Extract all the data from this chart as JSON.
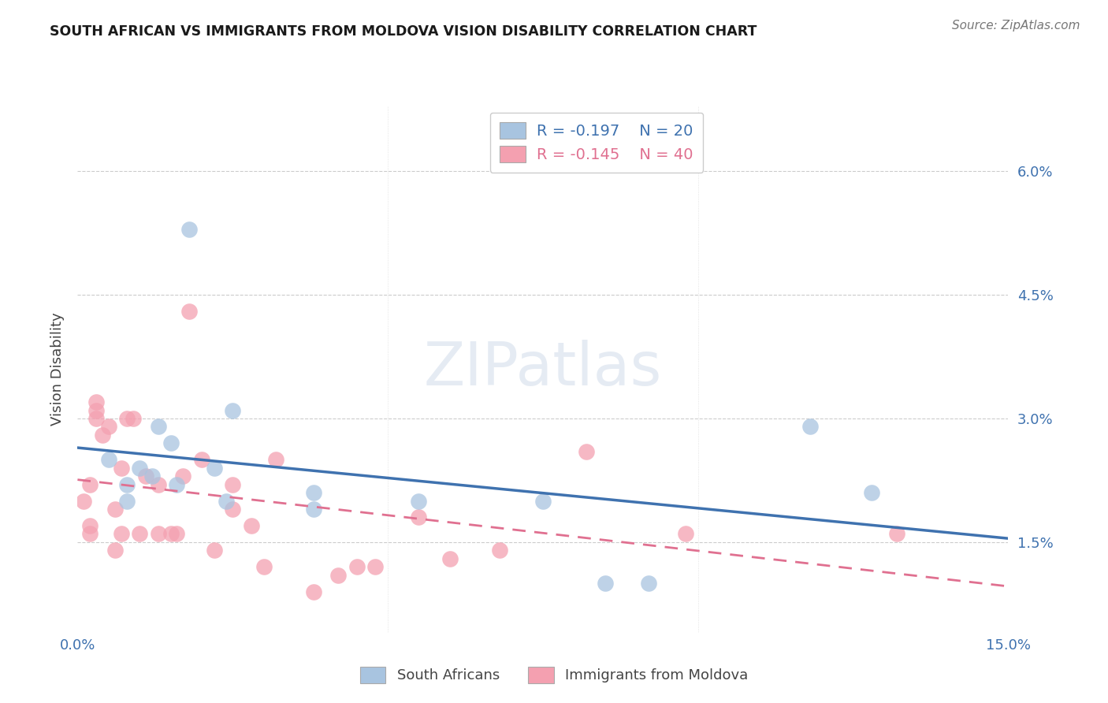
{
  "title": "SOUTH AFRICAN VS IMMIGRANTS FROM MOLDOVA VISION DISABILITY CORRELATION CHART",
  "source": "Source: ZipAtlas.com",
  "ylabel": "Vision Disability",
  "xlim": [
    0.0,
    0.15
  ],
  "ylim": [
    0.004,
    0.068
  ],
  "x_ticks": [
    0.0,
    0.05,
    0.1,
    0.15
  ],
  "x_tick_labels": [
    "0.0%",
    "",
    "",
    "15.0%"
  ],
  "y_ticks": [
    0.015,
    0.03,
    0.045,
    0.06
  ],
  "y_tick_labels": [
    "1.5%",
    "3.0%",
    "4.5%",
    "6.0%"
  ],
  "blue_R": -0.197,
  "blue_N": 20,
  "pink_R": -0.145,
  "pink_N": 40,
  "blue_color": "#a8c4e0",
  "pink_color": "#f4a0b0",
  "blue_line_color": "#3f72af",
  "pink_line_color": "#e07090",
  "blue_points_x": [
    0.018,
    0.005,
    0.008,
    0.008,
    0.01,
    0.012,
    0.013,
    0.015,
    0.016,
    0.022,
    0.024,
    0.025,
    0.038,
    0.038,
    0.055,
    0.075,
    0.085,
    0.092,
    0.118,
    0.128
  ],
  "blue_points_y": [
    0.053,
    0.025,
    0.022,
    0.02,
    0.024,
    0.023,
    0.029,
    0.027,
    0.022,
    0.024,
    0.02,
    0.031,
    0.021,
    0.019,
    0.02,
    0.02,
    0.01,
    0.01,
    0.029,
    0.021
  ],
  "pink_points_x": [
    0.001,
    0.002,
    0.002,
    0.002,
    0.003,
    0.003,
    0.003,
    0.004,
    0.005,
    0.006,
    0.006,
    0.007,
    0.007,
    0.008,
    0.009,
    0.01,
    0.011,
    0.013,
    0.013,
    0.015,
    0.016,
    0.017,
    0.018,
    0.02,
    0.022,
    0.025,
    0.025,
    0.028,
    0.03,
    0.032,
    0.038,
    0.042,
    0.045,
    0.048,
    0.055,
    0.06,
    0.068,
    0.082,
    0.098,
    0.132
  ],
  "pink_points_y": [
    0.02,
    0.017,
    0.016,
    0.022,
    0.031,
    0.03,
    0.032,
    0.028,
    0.029,
    0.019,
    0.014,
    0.016,
    0.024,
    0.03,
    0.03,
    0.016,
    0.023,
    0.016,
    0.022,
    0.016,
    0.016,
    0.023,
    0.043,
    0.025,
    0.014,
    0.019,
    0.022,
    0.017,
    0.012,
    0.025,
    0.009,
    0.011,
    0.012,
    0.012,
    0.018,
    0.013,
    0.014,
    0.026,
    0.016,
    0.016
  ]
}
